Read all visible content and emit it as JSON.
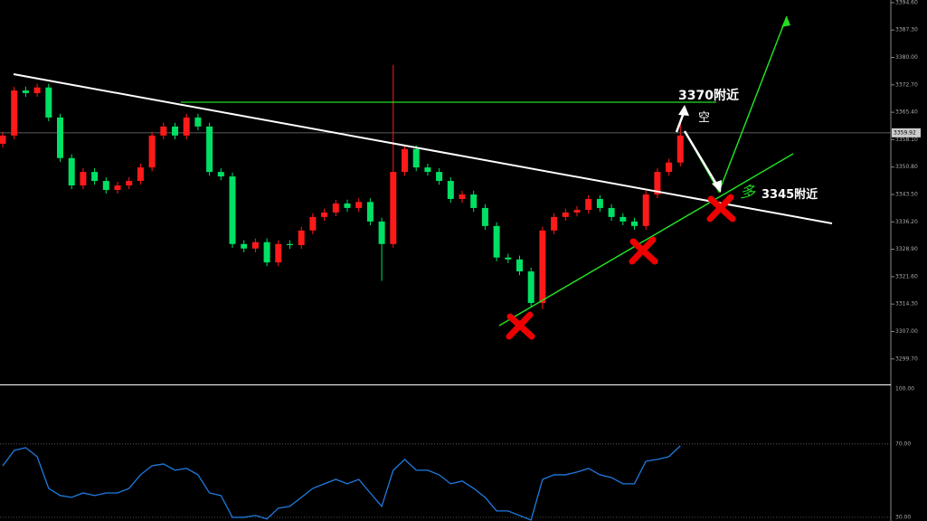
{
  "chart_data": [
    {
      "type": "candlestick",
      "up_color": "#ff1a1a",
      "down_color": "#00e064",
      "open": [
        3357.0,
        3359.2,
        3371.2,
        3370.5,
        3372.0,
        3364.0,
        3353.2,
        3345.9,
        3349.5,
        3347.1,
        3344.7,
        3345.9,
        3347.1,
        3350.7,
        3359.2,
        3361.6,
        3359.2,
        3364.0,
        3361.6,
        3349.5,
        3348.3,
        3330.3,
        3329.1,
        3330.8,
        3325.4,
        3330.3,
        3330.0,
        3333.9,
        3337.5,
        3338.7,
        3341.1,
        3339.9,
        3341.5,
        3336.3,
        3330.3,
        3349.5,
        3355.6,
        3350.7,
        3349.5,
        3347.1,
        3342.3,
        3343.5,
        3339.9,
        3335.1,
        3326.7,
        3326.2,
        3323.0,
        3314.6,
        3333.9,
        3337.5,
        3338.7,
        3339.4,
        3342.3,
        3339.9,
        3337.5,
        3336.3,
        3335.1,
        3343.5,
        3349.5,
        3352.0
      ],
      "high": [
        3360.2,
        3372.2,
        3372.2,
        3373.0,
        3373.0,
        3365.0,
        3354.2,
        3350.5,
        3350.5,
        3348.1,
        3346.9,
        3348.1,
        3351.7,
        3360.2,
        3362.6,
        3362.6,
        3365.0,
        3365.0,
        3362.6,
        3350.5,
        3349.3,
        3331.3,
        3331.8,
        3331.8,
        3331.3,
        3331.3,
        3334.9,
        3338.5,
        3339.7,
        3342.1,
        3342.1,
        3342.5,
        3342.5,
        3337.3,
        3378.0,
        3356.6,
        3356.6,
        3351.7,
        3350.5,
        3348.1,
        3344.5,
        3344.5,
        3340.9,
        3336.1,
        3327.7,
        3327.2,
        3324.0,
        3334.9,
        3338.5,
        3339.7,
        3340.4,
        3343.3,
        3343.3,
        3340.9,
        3338.5,
        3337.3,
        3344.5,
        3350.5,
        3353.0,
        3362.8
      ],
      "low": [
        3356.0,
        3358.2,
        3369.5,
        3369.5,
        3363.0,
        3352.2,
        3344.9,
        3344.9,
        3346.1,
        3343.7,
        3343.7,
        3344.9,
        3346.1,
        3349.7,
        3358.2,
        3358.2,
        3358.2,
        3360.6,
        3348.5,
        3347.3,
        3329.3,
        3328.1,
        3328.1,
        3324.4,
        3324.4,
        3329.0,
        3329.0,
        3332.9,
        3336.5,
        3337.7,
        3338.9,
        3338.9,
        3335.3,
        3320.5,
        3329.3,
        3348.5,
        3349.7,
        3348.5,
        3346.1,
        3341.3,
        3341.3,
        3338.9,
        3334.1,
        3325.7,
        3325.2,
        3322.0,
        3313.6,
        3313.0,
        3332.9,
        3336.5,
        3337.7,
        3338.4,
        3338.9,
        3336.5,
        3335.3,
        3334.1,
        3334.1,
        3342.5,
        3348.5,
        3351.0
      ],
      "close": [
        3359.2,
        3371.2,
        3370.5,
        3372.0,
        3364.0,
        3353.2,
        3345.9,
        3349.5,
        3347.1,
        3344.7,
        3345.9,
        3347.1,
        3350.7,
        3359.2,
        3361.6,
        3359.2,
        3364.0,
        3361.6,
        3349.5,
        3348.3,
        3330.3,
        3329.1,
        3330.8,
        3325.4,
        3330.3,
        3330.0,
        3333.9,
        3337.5,
        3338.7,
        3341.1,
        3339.9,
        3341.5,
        3336.3,
        3330.3,
        3349.5,
        3355.6,
        3350.7,
        3349.5,
        3347.1,
        3342.3,
        3343.5,
        3339.9,
        3335.1,
        3326.7,
        3326.2,
        3323.0,
        3314.6,
        3333.9,
        3337.5,
        3338.7,
        3339.4,
        3342.3,
        3339.9,
        3337.5,
        3336.3,
        3335.1,
        3343.5,
        3349.5,
        3352.0,
        3359.2
      ],
      "ylim": [
        3292.9,
        3395.3
      ],
      "yticks": [
        {
          "value": 3394.6,
          "label": "3394.60"
        },
        {
          "value": 3387.3,
          "label": "3387.30"
        },
        {
          "value": 3380,
          "label": "3380.00"
        },
        {
          "value": 3372.7,
          "label": "3372.70"
        },
        {
          "value": 3365.4,
          "label": "3365.40"
        },
        {
          "value": 3358.1,
          "label": "3358.10"
        },
        {
          "value": 3350.8,
          "label": "3350.80"
        },
        {
          "value": 3343.5,
          "label": "3343.50"
        },
        {
          "value": 3336.2,
          "label": "3336.20"
        },
        {
          "value": 3328.9,
          "label": "3328.90"
        },
        {
          "value": 3321.6,
          "label": "3321.60"
        },
        {
          "value": 3314.3,
          "label": "3314.30"
        },
        {
          "value": 3307,
          "label": "3307.00"
        },
        {
          "value": 3299.7,
          "label": "3299.70"
        }
      ],
      "current_price": {
        "value": 3359.92,
        "label": "3359.92"
      },
      "annotations": [
        "3370附近",
        "空",
        "多",
        "3345附近"
      ]
    },
    {
      "type": "line",
      "color": "#1e7be0",
      "values": [
        58.1,
        66.5,
        68.0,
        63.1,
        45.8,
        41.9,
        40.9,
        43.3,
        41.9,
        43.3,
        43.3,
        45.8,
        53.2,
        58.1,
        59.1,
        55.7,
        56.7,
        53.2,
        43.3,
        41.9,
        30.0,
        30.0,
        31.0,
        29.1,
        35.0,
        36.0,
        40.9,
        45.8,
        48.3,
        50.7,
        48.3,
        50.7,
        43.3,
        36.0,
        55.7,
        61.6,
        55.7,
        55.7,
        53.2,
        48.3,
        49.8,
        45.8,
        40.9,
        33.5,
        33.5,
        31.0,
        28.5,
        50.7,
        53.2,
        53.2,
        54.7,
        56.7,
        53.2,
        51.7,
        48.3,
        48.3,
        60.6,
        61.6,
        63.1,
        69.0
      ],
      "ylim": [
        28.0,
        102.0
      ],
      "yticks": [
        {
          "value": 100,
          "label": "100.00"
        },
        {
          "value": 70,
          "label": "70.00"
        },
        {
          "value": 30,
          "label": "30.00"
        }
      ]
    }
  ]
}
